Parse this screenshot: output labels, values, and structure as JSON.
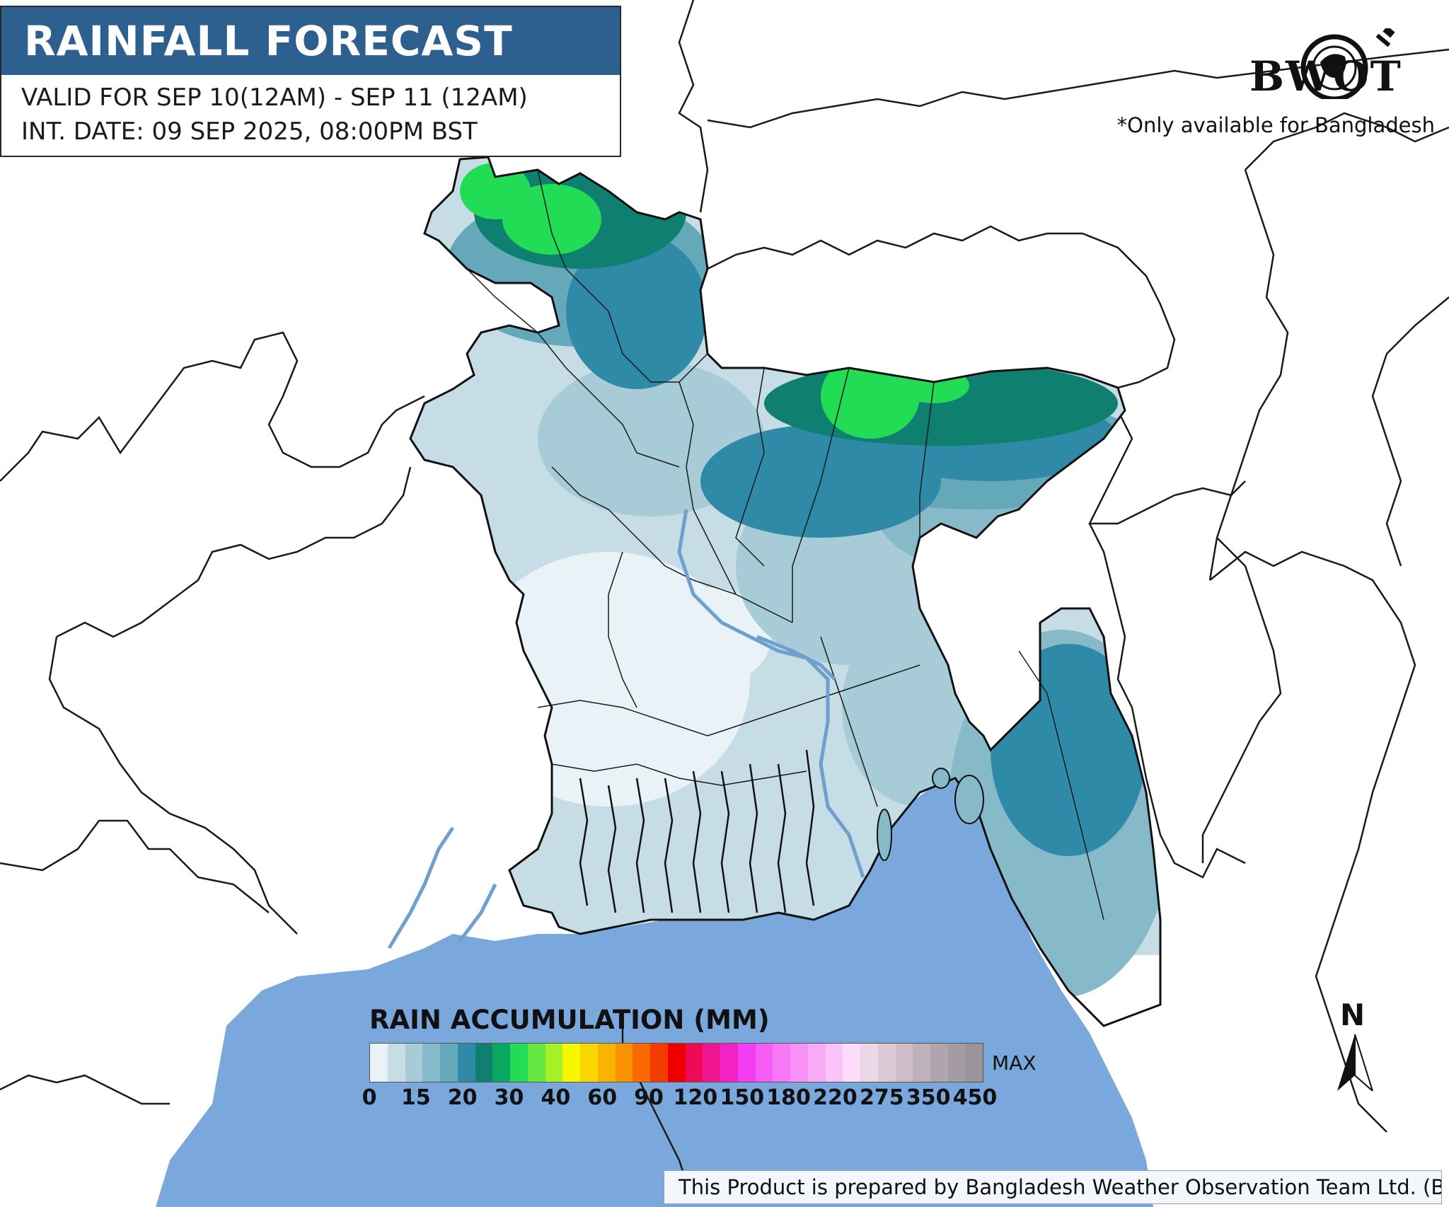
{
  "header": {
    "title": "RAINFALL FORECAST",
    "valid_for": "VALID FOR SEP 10(12AM) - SEP 11 (12AM)",
    "init_date": "INT. DATE: 09 SEP 2025, 08:00PM BST"
  },
  "brand": {
    "logo_text": "BWOT",
    "note": "*Only available for Bangladesh"
  },
  "legend": {
    "title": "RAIN ACCUMULATION (MM)",
    "max_label": "MAX",
    "ticks": [
      "0",
      "15",
      "20",
      "30",
      "40",
      "60",
      "90",
      "120",
      "150",
      "180",
      "220",
      "275",
      "350",
      "450"
    ],
    "colors": [
      "#e9f3f7",
      "#c6dde6",
      "#a7ccd7",
      "#86bac8",
      "#64a8b9",
      "#2f8aa7",
      "#0f7f6f",
      "#0aa861",
      "#22dc55",
      "#66e641",
      "#a6f028",
      "#f7f700",
      "#f9d600",
      "#f9b400",
      "#f99100",
      "#f86a00",
      "#f43b00",
      "#ee0000",
      "#ef0a55",
      "#f0168f",
      "#f222c4",
      "#f43cf2",
      "#f55cf4",
      "#f778f5",
      "#f891f6",
      "#f9aaf7",
      "#fbc4f9",
      "#fcdcfa",
      "#ead8e6",
      "#dcc9d7",
      "#cfbdca",
      "#bfb1bc",
      "#b0a5ae",
      "#a59ca3",
      "#9b939a"
    ]
  },
  "north_arrow": {
    "label": "N"
  },
  "footer": {
    "credit": "This Product is prepared by Bangladesh Weather Observation Team Ltd. (BWOT)"
  },
  "map": {
    "sea_color": "#7aa8dc",
    "river_color": "#6f9fcf",
    "land_color": "#ffffff",
    "boundary_color": "#111111"
  }
}
